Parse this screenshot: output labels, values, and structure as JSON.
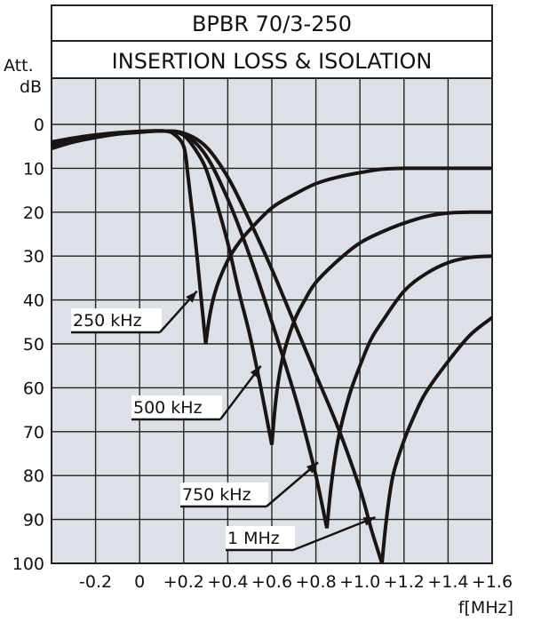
{
  "chart_data": {
    "type": "line",
    "title": "BPBR 70/3-250",
    "subtitle": "INSERTION LOSS & ISOLATION",
    "ylabel_line1": "Att.",
    "ylabel_line2": "dB",
    "xlabel": "f[MHz]",
    "xlim": [
      -0.4,
      1.6
    ],
    "ylim": [
      0,
      100
    ],
    "y_inverted": true,
    "grid": true,
    "x_ticks": [
      "-0.2",
      "0",
      "+0.2",
      "+0.4",
      "+0.6",
      "+0.8",
      "+1.0",
      "+1.2",
      "+1.4",
      "+1.6"
    ],
    "x_tick_values": [
      -0.2,
      0,
      0.2,
      0.4,
      0.6,
      0.8,
      1.0,
      1.2,
      1.4,
      1.6
    ],
    "y_ticks": [
      "0",
      "10",
      "20",
      "30",
      "40",
      "50",
      "60",
      "70",
      "80",
      "90",
      "100"
    ],
    "y_tick_values": [
      0,
      10,
      20,
      30,
      40,
      50,
      60,
      70,
      80,
      90,
      100
    ],
    "series": [
      {
        "name": "250 kHz",
        "insertion_loss": {
          "x": [
            -0.4,
            -0.3,
            -0.2,
            -0.1,
            0.0,
            0.05,
            0.1,
            0.15,
            0.2,
            0.22,
            0.25,
            0.28,
            0.3
          ],
          "y": [
            5.5,
            4.0,
            3.0,
            2.2,
            1.8,
            1.6,
            1.5,
            2.0,
            5.0,
            12,
            25,
            40,
            50
          ]
        },
        "isolation": {
          "x": [
            0.3,
            0.32,
            0.35,
            0.4,
            0.45,
            0.5,
            0.6,
            0.7,
            0.8,
            0.9,
            1.0,
            1.1,
            1.2,
            1.4,
            1.6
          ],
          "y": [
            50,
            43,
            37,
            31,
            27,
            24,
            19,
            16,
            13.5,
            12,
            11,
            10.2,
            10,
            10,
            10
          ]
        }
      },
      {
        "name": "500 kHz",
        "insertion_loss": {
          "x": [
            -0.4,
            -0.3,
            -0.2,
            -0.1,
            0.0,
            0.1,
            0.15,
            0.2,
            0.25,
            0.3,
            0.35,
            0.4,
            0.45,
            0.5,
            0.55,
            0.6
          ],
          "y": [
            5.0,
            3.7,
            2.8,
            2.1,
            1.7,
            1.5,
            1.7,
            2.5,
            5.5,
            10,
            18,
            27,
            38,
            48,
            60,
            73
          ]
        },
        "isolation": {
          "x": [
            0.6,
            0.62,
            0.65,
            0.7,
            0.75,
            0.8,
            0.9,
            1.0,
            1.1,
            1.2,
            1.3,
            1.4,
            1.5,
            1.6
          ],
          "y": [
            73,
            62,
            53,
            45,
            40,
            36,
            31,
            27,
            24.5,
            22.5,
            21,
            20.2,
            20,
            20
          ]
        }
      },
      {
        "name": "750 kHz",
        "insertion_loss": {
          "x": [
            -0.4,
            -0.3,
            -0.2,
            -0.1,
            0.0,
            0.1,
            0.2,
            0.3,
            0.4,
            0.5,
            0.6,
            0.7,
            0.75,
            0.8,
            0.85
          ],
          "y": [
            4.5,
            3.4,
            2.6,
            2.0,
            1.6,
            1.5,
            2.2,
            7,
            17,
            30,
            45,
            61,
            70,
            80,
            92
          ]
        },
        "isolation": {
          "x": [
            0.85,
            0.87,
            0.9,
            0.95,
            1.0,
            1.05,
            1.1,
            1.2,
            1.3,
            1.4,
            1.5,
            1.6
          ],
          "y": [
            92,
            82,
            72,
            62,
            55,
            49,
            45,
            38,
            34,
            31.5,
            30.3,
            30
          ]
        }
      },
      {
        "name": "1 MHz",
        "insertion_loss": {
          "x": [
            -0.4,
            -0.3,
            -0.2,
            -0.1,
            0.0,
            0.1,
            0.2,
            0.3,
            0.4,
            0.5,
            0.6,
            0.7,
            0.8,
            0.9,
            1.0,
            1.05,
            1.1
          ],
          "y": [
            4.0,
            3.1,
            2.4,
            1.9,
            1.6,
            1.5,
            2.0,
            5.0,
            12,
            22,
            33,
            45,
            57,
            69,
            83,
            92,
            100
          ]
        },
        "isolation": {
          "x": [
            1.1,
            1.12,
            1.15,
            1.2,
            1.25,
            1.3,
            1.4,
            1.5,
            1.6
          ],
          "y": [
            100,
            90,
            80,
            72,
            66,
            61,
            54,
            48,
            44
          ]
        }
      }
    ],
    "annotations": [
      {
        "text": "250 kHz",
        "points_to": [
          0.26,
          38
        ]
      },
      {
        "text": "500 kHz",
        "points_to": [
          0.55,
          55
        ]
      },
      {
        "text": "750 kHz",
        "points_to": [
          0.81,
          77
        ]
      },
      {
        "text": "1 MHz",
        "points_to": [
          1.07,
          89.5
        ]
      }
    ]
  }
}
